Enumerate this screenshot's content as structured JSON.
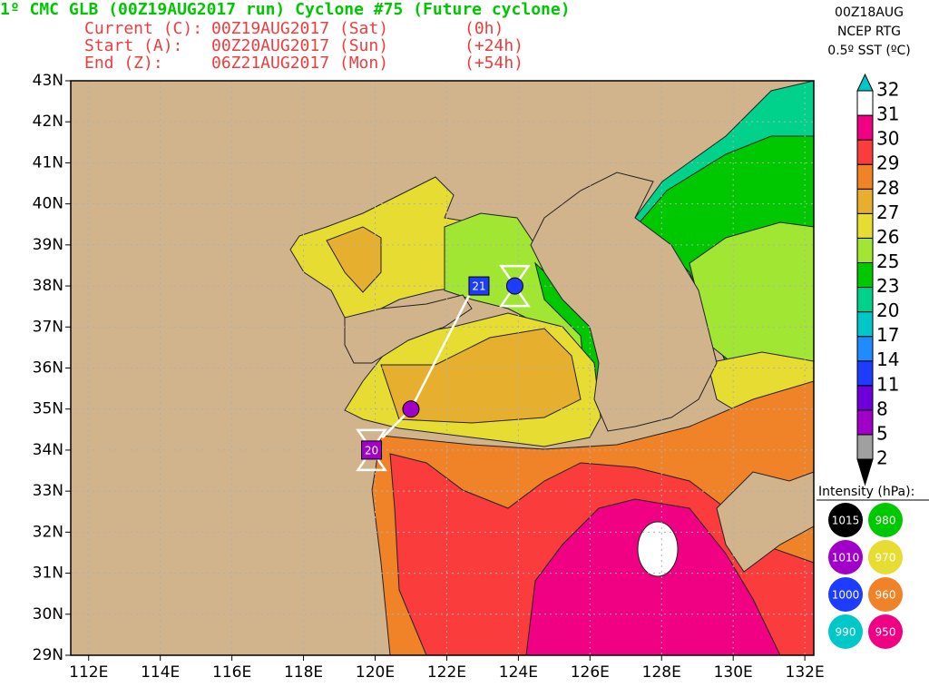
{
  "header": {
    "title": "1º CMC GLB (00Z19AUG2017 run) Cyclone #75 (Future cyclone)",
    "lines": [
      [
        "Current (C):",
        "00Z19AUG2017 (Sat)",
        "(0h)"
      ],
      [
        "Start (A):",
        "00Z20AUG2017 (Sun)",
        "(+24h)"
      ],
      [
        "End (Z):",
        "06Z21AUG2017 (Mon)",
        "(+54h)"
      ]
    ]
  },
  "sst_info": [
    "00Z18AUG",
    "NCEP RTG",
    "0.5º SST (ºC)"
  ],
  "map": {
    "lon_range": [
      111.5,
      132.25
    ],
    "lat_range": [
      29,
      43
    ],
    "lon_ticks": [
      {
        "value": 112,
        "label": "112E"
      },
      {
        "value": 114,
        "label": "114E"
      },
      {
        "value": 116,
        "label": "116E"
      },
      {
        "value": 118,
        "label": "118E"
      },
      {
        "value": 120,
        "label": "120E"
      },
      {
        "value": 122,
        "label": "122E"
      },
      {
        "value": 124,
        "label": "124E"
      },
      {
        "value": 126,
        "label": "126E"
      },
      {
        "value": 128,
        "label": "128E"
      },
      {
        "value": 130,
        "label": "130E"
      },
      {
        "value": 132,
        "label": "132E"
      }
    ],
    "lat_ticks": [
      {
        "value": 43,
        "label": "43N"
      },
      {
        "value": 42,
        "label": "42N"
      },
      {
        "value": 41,
        "label": "41N"
      },
      {
        "value": 40,
        "label": "40N"
      },
      {
        "value": 39,
        "label": "39N"
      },
      {
        "value": 38,
        "label": "38N"
      },
      {
        "value": 37,
        "label": "37N"
      },
      {
        "value": 36,
        "label": "36N"
      },
      {
        "value": 35,
        "label": "35N"
      },
      {
        "value": 34,
        "label": "34N"
      },
      {
        "value": 33,
        "label": "33N"
      },
      {
        "value": 32,
        "label": "32N"
      },
      {
        "value": 31,
        "label": "31N"
      },
      {
        "value": 30,
        "label": "30N"
      },
      {
        "value": 29,
        "label": "29N"
      }
    ]
  },
  "colorbar": {
    "levels": [
      2,
      5,
      8,
      11,
      14,
      17,
      20,
      23,
      25,
      26,
      27,
      28,
      29,
      30,
      31,
      32
    ],
    "colors": [
      "#000000",
      "#a0a0a0",
      "#a000c8",
      "#6e00dc",
      "#1e3cff",
      "#1e8cff",
      "#00c8c8",
      "#00d28c",
      "#00c800",
      "#a0e632",
      "#e6dc32",
      "#e6af2d",
      "#f08228",
      "#fa3c3c",
      "#f00082",
      "#ffffff",
      "#00c8c8"
    ]
  },
  "intensity_legend": {
    "title": "Intensity (hPa):",
    "items": [
      {
        "value": 1015,
        "color": "#000000"
      },
      {
        "value": 980,
        "color": "#00c800"
      },
      {
        "value": 1010,
        "color": "#a000c8"
      },
      {
        "value": 970,
        "color": "#e6dc32"
      },
      {
        "value": 1000,
        "color": "#1e3cff"
      },
      {
        "value": 960,
        "color": "#f08228"
      },
      {
        "value": 990,
        "color": "#00c8c8"
      },
      {
        "value": 950,
        "color": "#f00082"
      }
    ]
  },
  "track": {
    "path": [
      {
        "lon": 120.2,
        "lat": 34.3
      },
      {
        "lon": 121.0,
        "lat": 35.0
      },
      {
        "lon": 122.7,
        "lat": 37.9
      }
    ],
    "start": {
      "lon": 119.9,
      "lat": 34.0
    },
    "end": {
      "lon": 123.9,
      "lat": 38.0
    },
    "markers": [
      {
        "label": "20",
        "lon": 119.9,
        "lat": 34.0,
        "intensity": 1010
      },
      {
        "lon": 121.0,
        "lat": 35.0,
        "intensity": 1010
      },
      {
        "label": "21",
        "lon": 122.9,
        "lat": 38.0,
        "intensity": 1000
      },
      {
        "lon": 123.9,
        "lat": 38.0,
        "intensity": 1000
      }
    ]
  }
}
